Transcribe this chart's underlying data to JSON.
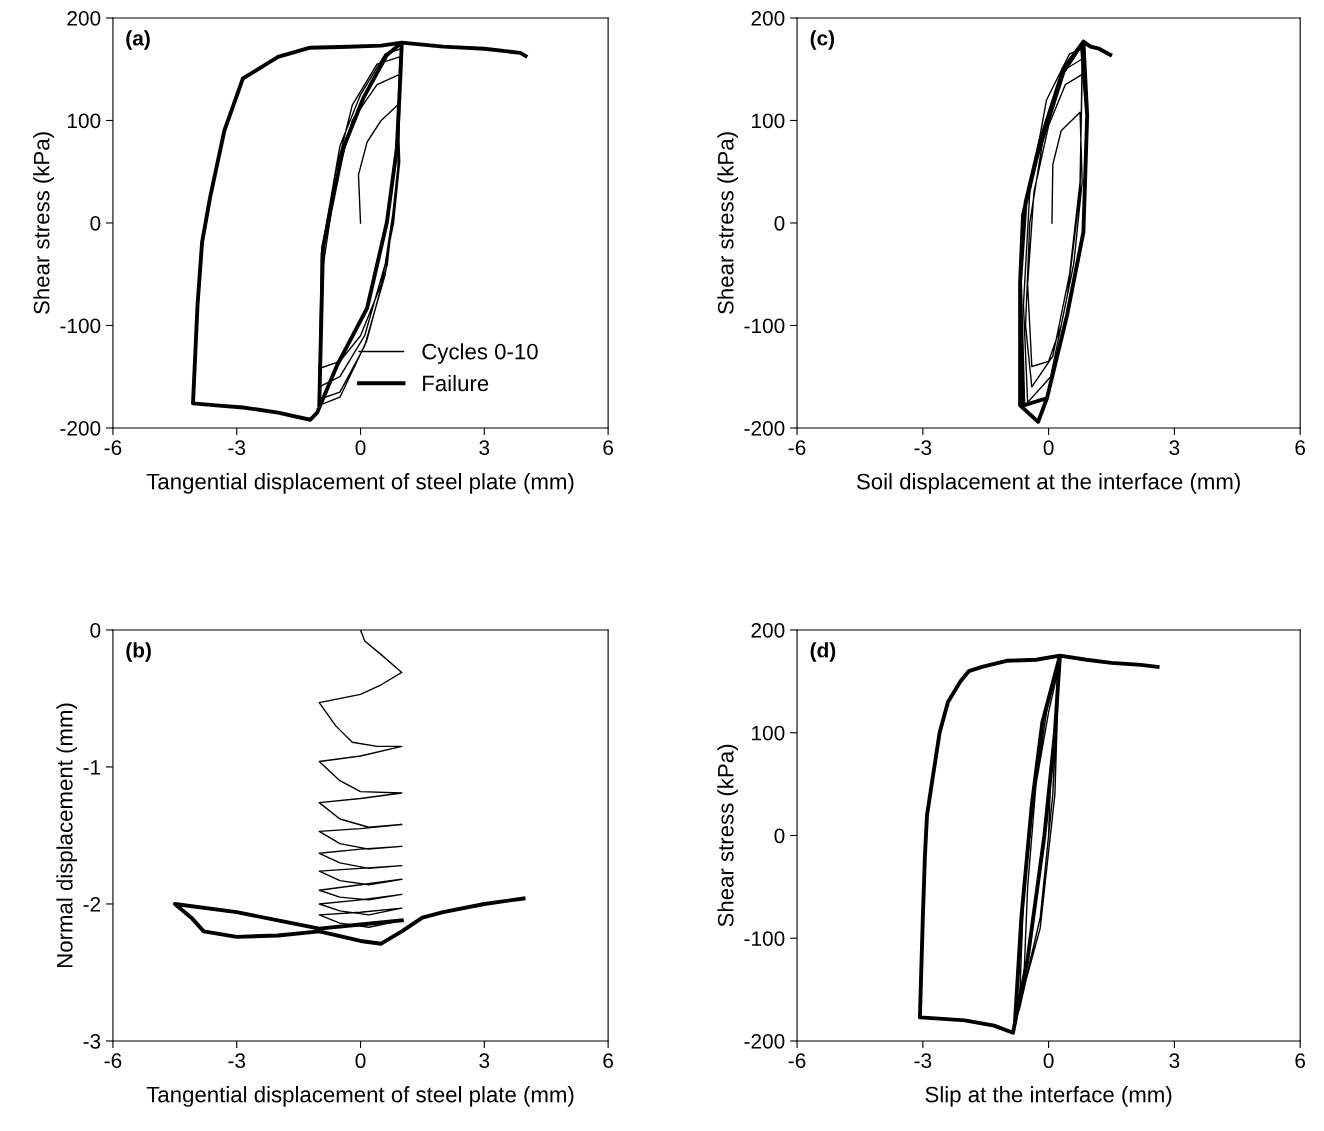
{
  "chart_data": [
    {
      "type": "line",
      "xlabel": "Tangential displacement of steel plate (mm)",
      "ylabel": "Shear stress (kPa)",
      "annotations": [
        "(a)"
      ],
      "xlim": [
        -6,
        6
      ],
      "xticks": [
        -6,
        -3,
        0,
        3,
        6
      ],
      "ylim": [
        -200,
        200
      ],
      "yticks": [
        -200,
        -100,
        0,
        100,
        200
      ],
      "grid": false,
      "legend": "bottom right",
      "marker": "none",
      "line_style": "solid",
      "series": [
        {
          "name": "Cycles 0-10",
          "color": "#000000",
          "x": [
            0,
            -0.05,
            0.16,
            0.5,
            0.9,
            0.95,
            0.8,
            0.5,
            0,
            -0.5,
            -1.0,
            -0.9,
            -0.6,
            -0.2,
            0.4,
            0.95,
            0.9,
            0.6,
            0.1,
            -0.5,
            -1.0,
            -0.95,
            -0.6,
            -0.2,
            0.4,
            0.95,
            0.9,
            0.6,
            0.1,
            -0.5,
            -1.0,
            -0.95,
            -0.5,
            0.0,
            0.6,
            0.98,
            0.92,
            0.65,
            0.15,
            -0.5,
            -1.0
          ],
          "values": [
            0,
            47,
            79,
            100,
            115,
            60,
            0,
            -60,
            -110,
            -135,
            -142,
            -40,
            40,
            100,
            135,
            145,
            40,
            -40,
            -110,
            -150,
            -160,
            -40,
            50,
            115,
            155,
            162,
            40,
            -50,
            -120,
            -165,
            -172,
            -30,
            75,
            125,
            165,
            170,
            60,
            -40,
            -115,
            -170,
            -178
          ]
        },
        {
          "name": "Failure",
          "color": "#000000",
          "x": [
            -1.0,
            -0.91,
            -0.42,
            0.07,
            0.64,
            1.0,
            0.5,
            -0.3,
            -1.22,
            -2.0,
            -2.85,
            -3.3,
            -3.65,
            -3.84,
            -3.95,
            -4.06,
            -3.5,
            -2.85,
            -2.0,
            -1.22,
            -1.05,
            -0.57,
            0.16,
            0.64,
            0.88,
            0.96,
            1.0,
            2.0,
            3.0,
            3.87,
            4.0
          ],
          "values": [
            -178,
            -24,
            73,
            122,
            164,
            176,
            173,
            172,
            171,
            162,
            141,
            90,
            24,
            -19,
            -80,
            -176,
            -178,
            -180,
            -185,
            -192,
            -185,
            -139,
            -83,
            1,
            73,
            138,
            176,
            172,
            170,
            166,
            163
          ]
        }
      ]
    },
    {
      "type": "line",
      "xlabel": "Soil displacement at the interface (mm)",
      "ylabel": "Shear stress (kPa)",
      "annotations": [
        "(c)"
      ],
      "xlim": [
        -6,
        6
      ],
      "xticks": [
        -6,
        -3,
        0,
        3,
        6
      ],
      "ylim": [
        -200,
        200
      ],
      "yticks": [
        -200,
        -100,
        0,
        100,
        200
      ],
      "grid": false,
      "marker": "none",
      "line_style": "solid",
      "series": [
        {
          "color": "#000000",
          "x": [
            0.08,
            0.1,
            0.3,
            0.75,
            0.8,
            0.6,
            0.3,
            0,
            -0.4,
            -0.5,
            -0.35,
            0,
            0.4,
            0.8,
            0.75,
            0.5,
            0.1,
            -0.4,
            -0.55,
            -0.45,
            -0.1,
            0.4,
            0.8,
            0.75,
            0.45,
            0.05,
            -0.5,
            -0.6,
            -0.45,
            -0.05,
            0.5,
            0.8
          ],
          "values": [
            0,
            57,
            90,
            108,
            40,
            -40,
            -100,
            -135,
            -140,
            -60,
            30,
            95,
            135,
            145,
            40,
            -50,
            -130,
            -160,
            -100,
            0,
            90,
            150,
            160,
            30,
            -70,
            -150,
            -175,
            -80,
            30,
            120,
            165,
            170
          ]
        },
        {
          "color": "#000000",
          "x": [
            0.8,
            0.92,
            0.83,
            0.44,
            -0.04,
            -0.6,
            -0.68,
            -0.61,
            -0.27,
            0.35,
            0.83,
            0.92,
            0.83,
            0.44,
            -0.04,
            -0.25,
            -0.68,
            -0.68,
            -0.55,
            -0.2,
            0.35,
            0.83,
            1.0,
            1.2,
            1.47
          ],
          "values": [
            170,
            105,
            -9,
            -90,
            -171,
            -178,
            -58,
            8,
            66,
            147,
            177,
            105,
            -9,
            -90,
            -171,
            -194,
            -178,
            -58,
            20,
            80,
            150,
            177,
            172,
            170,
            164
          ]
        }
      ]
    },
    {
      "type": "line",
      "xlabel": "Tangential displacement of steel plate (mm)",
      "ylabel": "Normal displacement (mm)",
      "annotations": [
        "(b)"
      ],
      "xlim": [
        -6,
        6
      ],
      "xticks": [
        -6,
        -3,
        0,
        3,
        6
      ],
      "ylim": [
        -3,
        0
      ],
      "yticks": [
        -3,
        -2,
        -1,
        0
      ],
      "grid": false,
      "marker": "none",
      "line_style": "solid",
      "series": [
        {
          "color": "#000000",
          "x": [
            0,
            0.1,
            0.5,
            1.0,
            0.5,
            0,
            -1.0,
            -0.6,
            -0.2,
            0.4,
            1.0,
            0,
            -1.0,
            -0.5,
            0,
            1.0,
            0,
            -1.0,
            -0.5,
            0.2,
            1.0,
            0,
            -1.0,
            -0.5,
            0.2,
            1.0,
            0,
            -1.0,
            -0.5,
            0.2,
            1.0,
            0,
            -1.0,
            -0.5,
            0.2,
            1.0,
            0,
            -1.0,
            -0.5,
            0.2,
            1.0,
            0,
            -1.0,
            -0.5,
            0.2,
            1.0,
            0,
            -1.0,
            -0.5,
            0.2,
            1.0
          ],
          "values": [
            0,
            -0.08,
            -0.18,
            -0.31,
            -0.4,
            -0.47,
            -0.53,
            -0.7,
            -0.82,
            -0.85,
            -0.85,
            -0.92,
            -0.96,
            -1.1,
            -1.18,
            -1.19,
            -1.23,
            -1.26,
            -1.38,
            -1.44,
            -1.42,
            -1.45,
            -1.47,
            -1.56,
            -1.6,
            -1.58,
            -1.6,
            -1.63,
            -1.7,
            -1.74,
            -1.72,
            -1.74,
            -1.76,
            -1.83,
            -1.86,
            -1.82,
            -1.86,
            -1.9,
            -1.95,
            -1.97,
            -1.93,
            -1.97,
            -2.0,
            -2.05,
            -2.08,
            -2.03,
            -2.06,
            -2.08,
            -2.14,
            -2.17,
            -2.12
          ]
        },
        {
          "color": "#000000",
          "x": [
            1.0,
            0,
            -1.0,
            -2.0,
            -3.0,
            -4.5,
            -4.1,
            -3.8,
            -3.0,
            -2.0,
            -1.0,
            0,
            0.5,
            1.0,
            1.5,
            2.0,
            3.0,
            3.95
          ],
          "values": [
            -2.12,
            -2.15,
            -2.18,
            -2.12,
            -2.06,
            -2.0,
            -2.1,
            -2.2,
            -2.24,
            -2.23,
            -2.2,
            -2.27,
            -2.29,
            -2.2,
            -2.1,
            -2.06,
            -2.0,
            -1.96
          ]
        }
      ]
    },
    {
      "type": "line",
      "xlabel": "Slip at the interface (mm)",
      "ylabel": "Shear stress (kPa)",
      "annotations": [
        "(d)"
      ],
      "xlim": [
        -6,
        6
      ],
      "xticks": [
        -6,
        -3,
        0,
        3,
        6
      ],
      "ylim": [
        -200,
        200
      ],
      "yticks": [
        -200,
        -100,
        0,
        100,
        200
      ],
      "grid": false,
      "marker": "none",
      "line_style": "solid",
      "series": [
        {
          "color": "#000000",
          "x": [
            0,
            0.05,
            0.2,
            0.1,
            -0.2,
            -0.6,
            -0.5,
            -0.3,
            0,
            0.22,
            0.1,
            -0.2,
            -0.7,
            -0.6,
            -0.35,
            -0.05,
            0.25,
            0.15,
            -0.2,
            -0.8
          ],
          "values": [
            0,
            60,
            120,
            40,
            -80,
            -150,
            -50,
            50,
            120,
            160,
            40,
            -80,
            -170,
            -60,
            40,
            120,
            170,
            40,
            -90,
            -180
          ]
        },
        {
          "color": "#000000",
          "x": [
            -0.8,
            -0.65,
            -0.4,
            -0.15,
            0.27,
            -0.3,
            -1.0,
            -1.59,
            -1.9,
            -2.1,
            -2.4,
            -2.6,
            -2.75,
            -2.9,
            -2.95,
            -3.0,
            -3.07,
            -2.7,
            -2.0,
            -1.3,
            -0.85,
            -0.5,
            -0.1,
            0.15,
            0.27,
            0.9,
            1.5,
            2.2,
            2.6
          ],
          "values": [
            -180,
            -80,
            30,
            110,
            175,
            171,
            170,
            164,
            160,
            150,
            130,
            100,
            60,
            20,
            -20,
            -80,
            -177,
            -178,
            -180,
            -185,
            -192,
            -120,
            0,
            100,
            175,
            171,
            168,
            166,
            164
          ]
        }
      ]
    }
  ]
}
